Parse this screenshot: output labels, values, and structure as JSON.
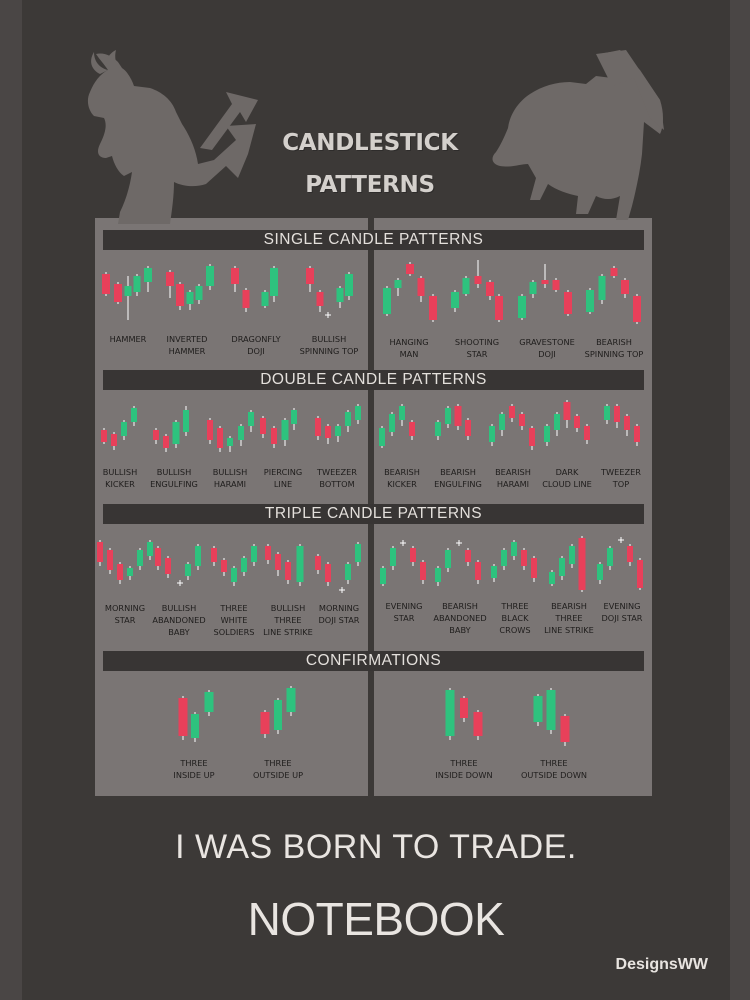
{
  "title": {
    "line1": "CANDLESTICK",
    "line2": "PATTERNS"
  },
  "sections": {
    "single": "SINGLE CANDLE PATTERNS",
    "double": "DOUBLE CANDLE PATTERNS",
    "triple": "TRIPLE CANDLE PATTERNS",
    "confirm": "CONFIRMATIONS"
  },
  "patterns": {
    "single_bullish": [
      {
        "line1": "HAMMER",
        "line2": ""
      },
      {
        "line1": "INVERTED",
        "line2": "HAMMER"
      },
      {
        "line1": "DRAGONFLY",
        "line2": "DOJI"
      },
      {
        "line1": "BULLISH",
        "line2": "SPINNING TOP"
      }
    ],
    "single_bearish": [
      {
        "line1": "HANGING",
        "line2": "MAN"
      },
      {
        "line1": "SHOOTING",
        "line2": "STAR"
      },
      {
        "line1": "GRAVESTONE",
        "line2": "DOJI"
      },
      {
        "line1": "BEARISH",
        "line2": "SPINNING TOP"
      }
    ],
    "double_bullish": [
      {
        "line1": "BULLISH",
        "line2": "KICKER"
      },
      {
        "line1": "BULLISH",
        "line2": "ENGULFING"
      },
      {
        "line1": "BULLISH",
        "line2": "HARAMI"
      },
      {
        "line1": "PIERCING",
        "line2": "LINE"
      },
      {
        "line1": "TWEEZER",
        "line2": "BOTTOM"
      }
    ],
    "double_bearish": [
      {
        "line1": "BEARISH",
        "line2": "KICKER"
      },
      {
        "line1": "BEARISH",
        "line2": "ENGULFING"
      },
      {
        "line1": "BEARISH",
        "line2": "HARAMI"
      },
      {
        "line1": "DARK",
        "line2": "CLOUD LINE"
      },
      {
        "line1": "TWEEZER",
        "line2": "TOP"
      }
    ],
    "triple_bullish": [
      {
        "line1": "MORNING",
        "line2": "STAR",
        "line3": ""
      },
      {
        "line1": "BULLISH",
        "line2": "ABANDONED",
        "line3": "BABY"
      },
      {
        "line1": "THREE",
        "line2": "WHITE",
        "line3": "SOLDIERS"
      },
      {
        "line1": "BULLISH",
        "line2": "THREE",
        "line3": "LINE STRIKE"
      },
      {
        "line1": "MORNING",
        "line2": "DOJI STAR",
        "line3": ""
      }
    ],
    "triple_bearish": [
      {
        "line1": "EVENING",
        "line2": "STAR",
        "line3": ""
      },
      {
        "line1": "BEARISH",
        "line2": "ABANDONED",
        "line3": "BABY"
      },
      {
        "line1": "THREE",
        "line2": "BLACK",
        "line3": "CROWS"
      },
      {
        "line1": "BEARISH",
        "line2": "THREE",
        "line3": "LINE STRIKE"
      },
      {
        "line1": "EVENING",
        "line2": "DOJI STAR",
        "line3": ""
      }
    ],
    "confirm_bullish": [
      {
        "line1": "THREE",
        "line2": "INSIDE UP"
      },
      {
        "line1": "THREE",
        "line2": "OUTSIDE UP"
      }
    ],
    "confirm_bearish": [
      {
        "line1": "THREE",
        "line2": "INSIDE DOWN"
      },
      {
        "line1": "THREE",
        "line2": "OUTSIDE DOWN"
      }
    ]
  },
  "slogan": "I WAS BORN TO TRADE.",
  "notebook": "NOTEBOOK",
  "brand": "DesignsWW",
  "colors": {
    "bullish_green": "#2ec27e",
    "bearish_red": "#e8405a",
    "panel": "#7a7574",
    "background": "#3c3937"
  },
  "icons": [
    "bull-icon",
    "bear-icon",
    "up-arrow-icon",
    "down-arrow-icon"
  ]
}
